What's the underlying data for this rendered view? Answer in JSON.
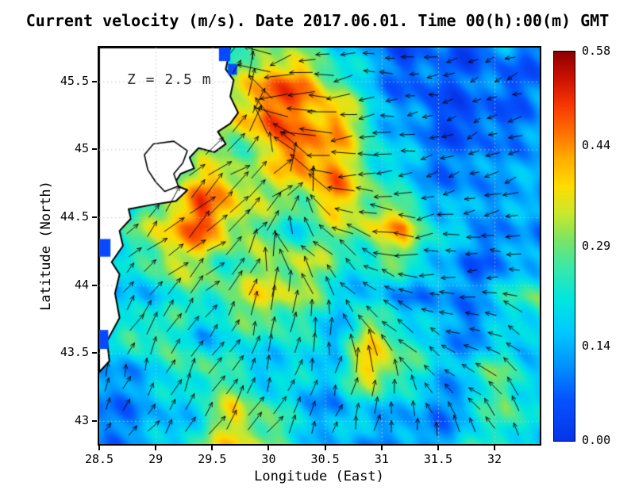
{
  "chart_data": {
    "type": "heatmap",
    "title": "Current velocity (m/s). Date 2017.06.01. Time 00(h):00(m) GMT",
    "xlabel": "Longitude (East)",
    "ylabel": "Latitude (North)",
    "annotation": "Z = 2.5 m",
    "units": "m/s",
    "xlim": [
      28.5,
      32.4
    ],
    "ylim": [
      42.83,
      45.75
    ],
    "xticks": [
      28.5,
      29,
      29.5,
      30,
      30.5,
      31,
      31.5,
      32
    ],
    "xtick_labels": [
      "28.5",
      "29",
      "29.5",
      "30",
      "30.5",
      "31",
      "31.5",
      "32"
    ],
    "yticks": [
      43,
      43.5,
      44,
      44.5,
      45,
      45.5
    ],
    "ytick_labels": [
      "43",
      "43.5",
      "44",
      "44.5",
      "45",
      "45.5"
    ],
    "grid": "dotted",
    "colorbar": {
      "min": 0,
      "max": 0.58,
      "ticks": [
        0,
        0.14,
        0.29,
        0.44,
        0.58
      ],
      "tick_labels": [
        "0.00",
        "0.14",
        "0.29",
        "0.44",
        "0.58"
      ],
      "colormap": [
        [
          0.0,
          "#0635e8"
        ],
        [
          0.06,
          "#0552ff"
        ],
        [
          0.11,
          "#0090ff"
        ],
        [
          0.16,
          "#00c8ff"
        ],
        [
          0.21,
          "#00e6e0"
        ],
        [
          0.26,
          "#3ce8a8"
        ],
        [
          0.3,
          "#7ce464"
        ],
        [
          0.34,
          "#cce82c"
        ],
        [
          0.38,
          "#ffdc00"
        ],
        [
          0.42,
          "#ffae00"
        ],
        [
          0.46,
          "#ff7000"
        ],
        [
          0.5,
          "#f73802"
        ],
        [
          0.54,
          "#cc1200"
        ],
        [
          0.58,
          "#8e0000"
        ]
      ]
    },
    "speed_grid": {
      "lon": [
        28.5,
        28.8,
        29.1,
        29.4,
        29.7,
        30.0,
        30.3,
        30.6,
        30.9,
        31.2,
        31.5,
        31.8,
        32.1,
        32.4
      ],
      "lat": [
        45.75,
        45.49,
        45.22,
        44.96,
        44.7,
        44.43,
        44.17,
        43.91,
        43.64,
        43.38,
        43.12,
        42.83
      ],
      "values": [
        [
          0.1,
          0.1,
          0.1,
          0.12,
          0.2,
          0.3,
          0.25,
          0.18,
          0.12,
          0.06,
          0.1,
          0.04,
          0.12,
          0.08
        ],
        [
          0.1,
          0.1,
          0.12,
          0.15,
          0.3,
          0.48,
          0.45,
          0.3,
          0.15,
          0.08,
          0.05,
          0.1,
          0.06,
          0.1
        ],
        [
          0.1,
          0.12,
          0.15,
          0.2,
          0.35,
          0.5,
          0.42,
          0.45,
          0.22,
          0.12,
          0.06,
          0.04,
          0.08,
          0.12
        ],
        [
          0.1,
          0.12,
          0.2,
          0.3,
          0.25,
          0.35,
          0.5,
          0.4,
          0.25,
          0.15,
          0.1,
          0.08,
          0.14,
          0.1
        ],
        [
          0.12,
          0.15,
          0.3,
          0.45,
          0.4,
          0.3,
          0.35,
          0.45,
          0.3,
          0.18,
          0.12,
          0.1,
          0.16,
          0.12
        ],
        [
          0.15,
          0.25,
          0.4,
          0.5,
          0.35,
          0.25,
          0.2,
          0.3,
          0.35,
          0.42,
          0.2,
          0.14,
          0.12,
          0.1
        ],
        [
          0.12,
          0.2,
          0.35,
          0.3,
          0.25,
          0.3,
          0.35,
          0.25,
          0.2,
          0.3,
          0.15,
          0.08,
          0.1,
          0.14
        ],
        [
          0.1,
          0.15,
          0.2,
          0.25,
          0.3,
          0.38,
          0.3,
          0.2,
          0.15,
          0.12,
          0.1,
          0.12,
          0.2,
          0.3
        ],
        [
          0.12,
          0.3,
          0.25,
          0.15,
          0.2,
          0.25,
          0.2,
          0.15,
          0.35,
          0.25,
          0.15,
          0.1,
          0.15,
          0.2
        ],
        [
          0.1,
          0.15,
          0.2,
          0.3,
          0.2,
          0.15,
          0.18,
          0.2,
          0.4,
          0.3,
          0.15,
          0.2,
          0.28,
          0.15
        ],
        [
          0.08,
          0.12,
          0.15,
          0.2,
          0.35,
          0.25,
          0.15,
          0.12,
          0.2,
          0.15,
          0.1,
          0.15,
          0.3,
          0.18
        ],
        [
          0.1,
          0.12,
          0.15,
          0.25,
          0.4,
          0.3,
          0.2,
          0.15,
          0.12,
          0.1,
          0.12,
          0.2,
          0.25,
          0.15
        ]
      ]
    },
    "vector_grid": {
      "lon": [
        28.6,
        29.14,
        29.68,
        30.22,
        30.76,
        31.3,
        31.84,
        32.38
      ],
      "lat": [
        45.6,
        45.15,
        44.7,
        44.25,
        43.8,
        43.35,
        42.9
      ],
      "u": [
        [
          0.0,
          0.05,
          0.15,
          -0.3,
          -0.38,
          -0.3,
          -0.22,
          -0.18
        ],
        [
          0.02,
          0.1,
          0.28,
          -0.32,
          -0.4,
          -0.34,
          -0.26,
          -0.2
        ],
        [
          0.05,
          0.2,
          0.3,
          0.18,
          -0.28,
          -0.34,
          -0.3,
          -0.24
        ],
        [
          0.1,
          0.24,
          0.14,
          -0.1,
          -0.24,
          -0.3,
          -0.28,
          -0.2
        ],
        [
          0.06,
          0.1,
          0.06,
          0.0,
          -0.12,
          -0.22,
          -0.24,
          -0.16
        ],
        [
          0.02,
          0.06,
          0.1,
          0.06,
          0.04,
          -0.1,
          -0.16,
          -0.1
        ],
        [
          0.04,
          0.08,
          0.1,
          0.1,
          0.06,
          0.0,
          -0.06,
          -0.02
        ]
      ],
      "v": [
        [
          0.0,
          0.1,
          0.2,
          -0.08,
          -0.06,
          0.06,
          -0.12,
          -0.06
        ],
        [
          0.04,
          0.18,
          0.24,
          0.1,
          -0.04,
          -0.08,
          -0.12,
          -0.06
        ],
        [
          0.1,
          0.24,
          0.2,
          0.14,
          0.06,
          -0.04,
          -0.08,
          -0.08
        ],
        [
          0.14,
          0.2,
          0.1,
          0.18,
          0.14,
          0.02,
          -0.04,
          0.04
        ],
        [
          0.14,
          0.1,
          0.14,
          0.22,
          0.2,
          0.1,
          0.06,
          0.1
        ],
        [
          0.1,
          0.14,
          0.18,
          0.24,
          0.24,
          0.18,
          0.1,
          0.14
        ],
        [
          0.06,
          0.1,
          0.14,
          0.18,
          0.2,
          0.14,
          0.1,
          0.1
        ]
      ]
    },
    "coastline": [
      [
        28.5,
        43.36
      ],
      [
        28.59,
        43.44
      ],
      [
        28.57,
        43.59
      ],
      [
        28.68,
        43.76
      ],
      [
        28.64,
        43.94
      ],
      [
        28.68,
        44.08
      ],
      [
        28.61,
        44.17
      ],
      [
        28.71,
        44.29
      ],
      [
        28.68,
        44.4
      ],
      [
        28.78,
        44.49
      ],
      [
        28.76,
        44.56
      ],
      [
        28.95,
        44.59
      ],
      [
        29.18,
        44.62
      ],
      [
        29.28,
        44.7
      ],
      [
        29.16,
        44.74
      ],
      [
        29.22,
        44.82
      ],
      [
        29.34,
        44.86
      ],
      [
        29.3,
        44.94
      ],
      [
        29.38,
        45.01
      ],
      [
        29.52,
        44.98
      ],
      [
        29.62,
        45.04
      ],
      [
        29.55,
        45.13
      ],
      [
        29.66,
        45.19
      ],
      [
        29.73,
        45.27
      ],
      [
        29.66,
        45.39
      ],
      [
        29.69,
        45.51
      ],
      [
        29.62,
        45.59
      ],
      [
        29.66,
        45.75
      ]
    ],
    "lagoon": [
      [
        28.98,
        45.04
      ],
      [
        29.16,
        45.06
      ],
      [
        29.28,
        44.99
      ],
      [
        29.24,
        44.9
      ],
      [
        29.16,
        44.82
      ],
      [
        29.2,
        44.73
      ],
      [
        29.08,
        44.69
      ],
      [
        29.0,
        44.76
      ],
      [
        28.93,
        44.85
      ],
      [
        28.9,
        44.96
      ]
    ],
    "river_cells": [
      {
        "lon": 29.56,
        "lat": 45.75,
        "dlon": 0.1,
        "dlat": 0.1
      },
      {
        "lon": 29.64,
        "lat": 45.63,
        "dlon": 0.08,
        "dlat": 0.08
      }
    ],
    "coast_cells": [
      {
        "lon": 28.5,
        "lat": 44.34,
        "dlon": 0.1,
        "dlat": 0.13
      },
      {
        "lon": 28.5,
        "lat": 43.67,
        "dlon": 0.08,
        "dlat": 0.14
      }
    ],
    "colors": {
      "land": "#ffffff",
      "coastline": "#000000",
      "arrows": "#000000",
      "gridline": "#c4c4c4",
      "river_cell": "#0848ff"
    }
  }
}
